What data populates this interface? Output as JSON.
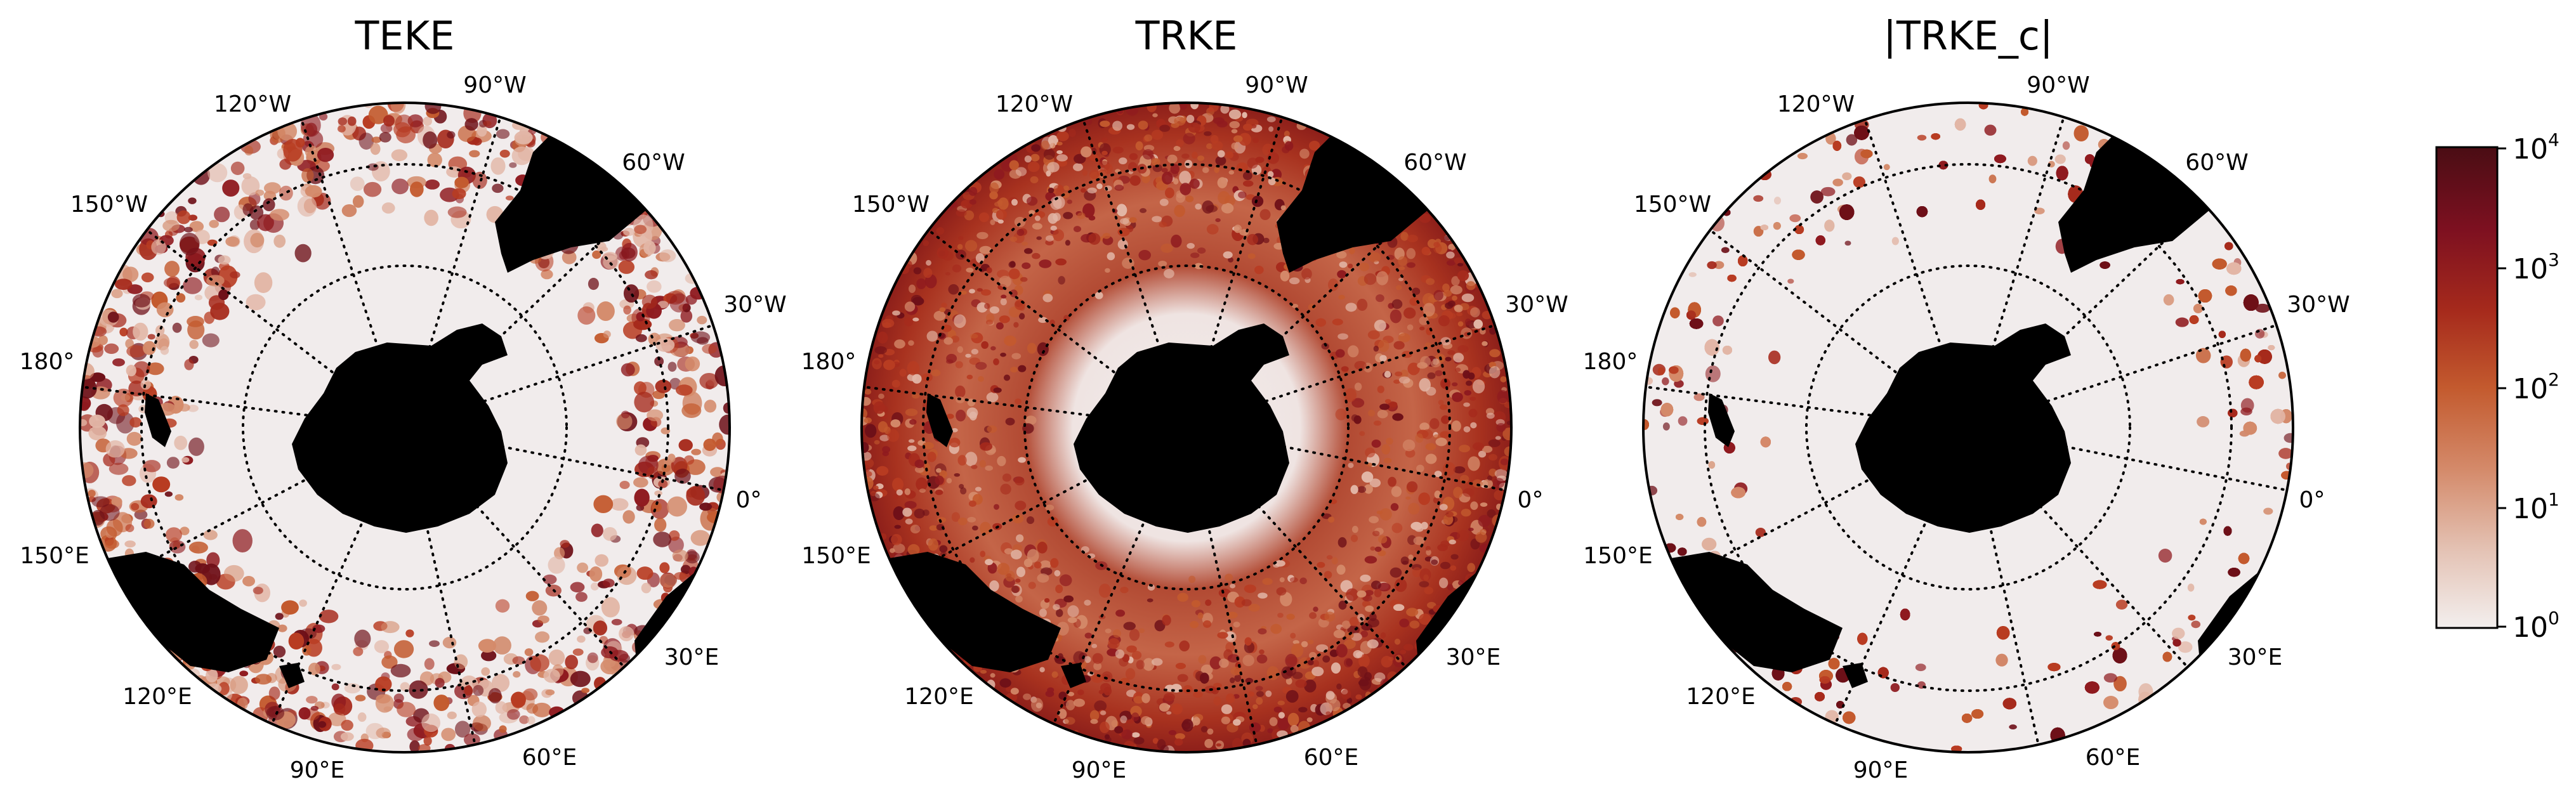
{
  "figure": {
    "panels": [
      {
        "title": "TEKE",
        "key": "teke"
      },
      {
        "title": "TRKE",
        "key": "trke"
      },
      {
        "title": "|TRKE_c|",
        "key": "trkec"
      }
    ],
    "lon_labels": [
      "120°W",
      "90°W",
      "60°W",
      "150°W",
      "30°W",
      "180°",
      "0°",
      "150°E",
      "30°E",
      "120°E",
      "90°E",
      "60°E"
    ],
    "colorbar": {
      "scale": "log",
      "ticks": [
        {
          "base": "10",
          "exp": "4"
        },
        {
          "base": "10",
          "exp": "3"
        },
        {
          "base": "10",
          "exp": "2"
        },
        {
          "base": "10",
          "exp": "1"
        },
        {
          "base": "10",
          "exp": "0"
        }
      ],
      "colormap": [
        "#f3efee",
        "#e4c3b5",
        "#d48a6a",
        "#c35a2e",
        "#a62a1c",
        "#7d1020",
        "#4a0d14"
      ]
    },
    "colors": {
      "land": "#000000",
      "ocean_low": "#f1ecec",
      "gridline": "#000000"
    }
  }
}
